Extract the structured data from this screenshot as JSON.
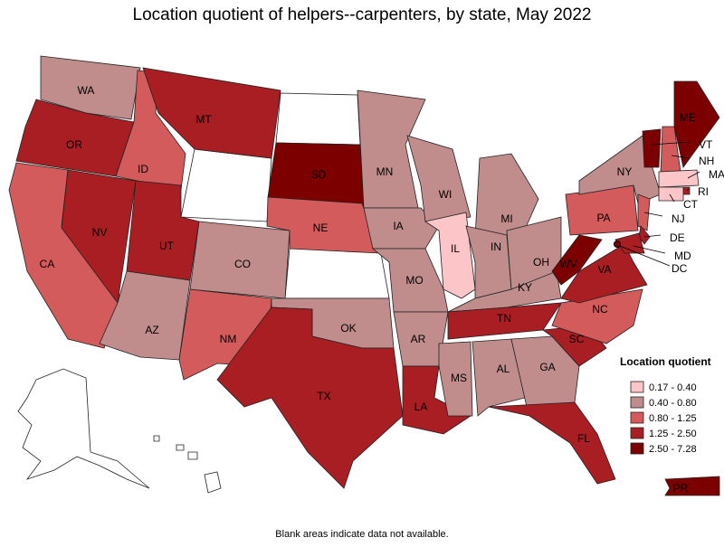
{
  "title": "Location quotient of helpers--carpenters, by state, May 2022",
  "note": "Blank areas indicate data not available.",
  "legend": {
    "title": "Location quotient",
    "items": [
      {
        "label": "0.17 - 0.40",
        "color": "#fcc5c8"
      },
      {
        "label": "0.40 - 0.80",
        "color": "#c08c8c"
      },
      {
        "label": "0.80 - 1.25",
        "color": "#d45b5b"
      },
      {
        "label": "1.25 - 2.50",
        "color": "#a81e22"
      },
      {
        "label": "2.50 - 7.28",
        "color": "#7d0000"
      }
    ]
  },
  "states": [
    {
      "label": "WA",
      "color": "#c08c8c"
    },
    {
      "label": "OR",
      "color": "#a81e22"
    },
    {
      "label": "CA",
      "color": "#d45b5b"
    },
    {
      "label": "NV",
      "color": "#a81e22"
    },
    {
      "label": "ID",
      "color": "#d45b5b"
    },
    {
      "label": "MT",
      "color": "#a81e22"
    },
    {
      "label": "UT",
      "color": "#a81e22"
    },
    {
      "label": "AZ",
      "color": "#c08c8c"
    },
    {
      "label": "CO",
      "color": "#c08c8c"
    },
    {
      "label": "NM",
      "color": "#d45b5b"
    },
    {
      "label": "SD",
      "color": "#7d0000"
    },
    {
      "label": "NE",
      "color": "#d45b5b"
    },
    {
      "label": "OK",
      "color": "#c08c8c"
    },
    {
      "label": "TX",
      "color": "#a81e22"
    },
    {
      "label": "MN",
      "color": "#c08c8c"
    },
    {
      "label": "IA",
      "color": "#c08c8c"
    },
    {
      "label": "MO",
      "color": "#c08c8c"
    },
    {
      "label": "AR",
      "color": "#c08c8c"
    },
    {
      "label": "LA",
      "color": "#a81e22"
    },
    {
      "label": "WI",
      "color": "#c08c8c"
    },
    {
      "label": "IL",
      "color": "#fcc5c8"
    },
    {
      "label": "MI",
      "color": "#c08c8c"
    },
    {
      "label": "IN",
      "color": "#c08c8c"
    },
    {
      "label": "OH",
      "color": "#c08c8c"
    },
    {
      "label": "KY",
      "color": "#c08c8c"
    },
    {
      "label": "TN",
      "color": "#a81e22"
    },
    {
      "label": "MS",
      "color": "#c08c8c"
    },
    {
      "label": "AL",
      "color": "#c08c8c"
    },
    {
      "label": "GA",
      "color": "#c08c8c"
    },
    {
      "label": "FL",
      "color": "#a81e22"
    },
    {
      "label": "SC",
      "color": "#a81e22"
    },
    {
      "label": "NC",
      "color": "#d45b5b"
    },
    {
      "label": "VA",
      "color": "#a81e22"
    },
    {
      "label": "WV",
      "color": "#7d0000"
    },
    {
      "label": "PA",
      "color": "#d45b5b"
    },
    {
      "label": "NY",
      "color": "#c08c8c"
    },
    {
      "label": "NJ",
      "color": "#d45b5b"
    },
    {
      "label": "DE",
      "color": "#a81e22"
    },
    {
      "label": "MD",
      "color": "#a81e22"
    },
    {
      "label": "DC",
      "color": "#7d0000"
    },
    {
      "label": "VT",
      "color": "#7d0000"
    },
    {
      "label": "NH",
      "color": "#d45b5b"
    },
    {
      "label": "ME",
      "color": "#7d0000"
    },
    {
      "label": "MA",
      "color": "#fcc5c8"
    },
    {
      "label": "RI",
      "color": "#a81e22"
    },
    {
      "label": "CT",
      "color": "#fcc5c8"
    },
    {
      "label": "PR",
      "color": "#7d0000"
    }
  ]
}
